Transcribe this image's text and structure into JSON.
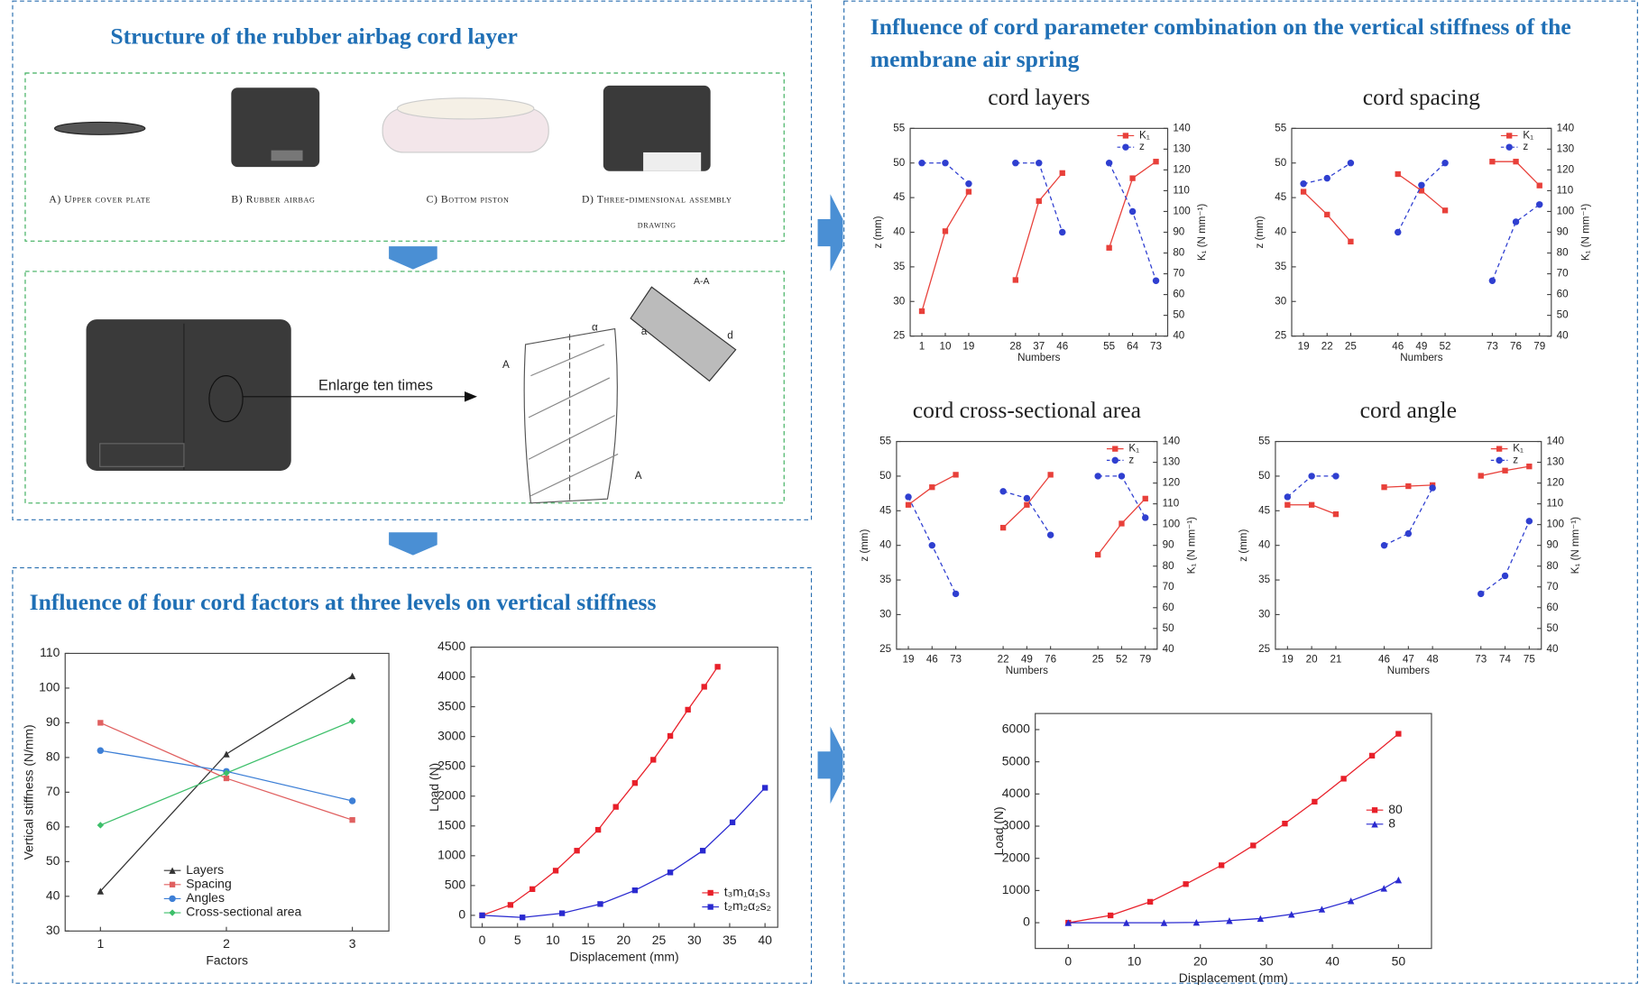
{
  "panels": {
    "structure": {
      "title": "Structure of the rubber airbag cord layer",
      "captions": [
        "A) Upper cover plate",
        "B) Rubber airbag",
        "C) Bottom piston",
        "D) Three-dimensional assembly drawing"
      ],
      "enlarge": "Enlarge ten times",
      "section": "A-A",
      "marks": [
        "A",
        "A",
        "α",
        "a",
        "d"
      ]
    },
    "factors": {
      "title": "Influence of four cord factors at three levels on vertical stiffness"
    },
    "combination": {
      "title": "Influence of cord parameter combination on the vertical stiffness of the membrane air spring"
    }
  },
  "chart_data": [
    {
      "type": "line",
      "x": [
        1,
        2,
        3
      ],
      "xlim": [
        0.72,
        3.29
      ],
      "xticks": [
        1,
        2,
        3
      ],
      "ylim": [
        30,
        110
      ],
      "yticks": [
        30,
        40,
        50,
        60,
        70,
        80,
        90,
        100,
        110
      ],
      "xlabel": "Factors",
      "ylabel": "Vertical stiffness (N/mm)",
      "legend": "lower center",
      "series": [
        {
          "name": "Layers",
          "color": "#333333",
          "marker": "triangle",
          "values": [
            41.5,
            81,
            103.5
          ]
        },
        {
          "name": "Spacing",
          "color": "#e06060",
          "marker": "square",
          "values": [
            90,
            74,
            62
          ]
        },
        {
          "name": "Angles",
          "color": "#3d7fd6",
          "marker": "circle",
          "values": [
            82,
            76,
            67.5
          ]
        },
        {
          "name": "Cross-sectional area",
          "color": "#3dbf6a",
          "marker": "diamond",
          "values": [
            60.5,
            75.5,
            90.5
          ]
        }
      ]
    },
    {
      "type": "line",
      "xlim": [
        -1.6,
        41.8
      ],
      "xticks": [
        0,
        5,
        10,
        15,
        20,
        25,
        30,
        35,
        40
      ],
      "ylim": [
        -200,
        4500
      ],
      "yticks": [
        0,
        500,
        1000,
        1500,
        2000,
        2500,
        3000,
        3500,
        4000,
        4500
      ],
      "xlabel": "Displacement (mm)",
      "ylabel": "Load (N)",
      "legend": "lower right",
      "series": [
        {
          "name": "t₃m₁α₁s₃",
          "color": "#e8202a",
          "marker": "square",
          "x": [
            0,
            4,
            7.1,
            10.4,
            13.4,
            16.4,
            18.9,
            21.6,
            24.2,
            26.6,
            29.1,
            31.4,
            33.3
          ],
          "values": [
            0,
            175,
            440,
            750,
            1085,
            1435,
            1820,
            2220,
            2610,
            3010,
            3450,
            3835,
            4170
          ]
        },
        {
          "name": "t₂m₂α₂s₂",
          "color": "#2a2ad0",
          "marker": "square",
          "x": [
            0,
            5.7,
            11.3,
            16.7,
            21.6,
            26.6,
            31.2,
            35.4,
            40
          ],
          "values": [
            0,
            -35,
            35,
            190,
            420,
            720,
            1085,
            1560,
            2140
          ]
        }
      ]
    },
    {
      "type": "line",
      "xlim": [
        -5,
        55
      ],
      "xticks": [
        0,
        10,
        20,
        30,
        40,
        50
      ],
      "ylim": [
        -800,
        6500
      ],
      "yticks": [
        0,
        1000,
        2000,
        3000,
        4000,
        5000,
        6000
      ],
      "xlabel": "Displacement (mm)",
      "ylabel": "Load (N)",
      "legend": "center right",
      "series": [
        {
          "name": "80",
          "color": "#e8202a",
          "marker": "square",
          "x": [
            0,
            6.4,
            12.4,
            17.8,
            23.2,
            28,
            32.8,
            37.3,
            41.7,
            46,
            50
          ],
          "values": [
            0,
            227,
            650,
            1200,
            1785,
            2400,
            3080,
            3760,
            4475,
            5190,
            5870
          ]
        },
        {
          "name": "8",
          "color": "#2a2ad0",
          "marker": "triangle",
          "x": [
            0,
            8.8,
            14.5,
            19.4,
            24.4,
            29.1,
            33.8,
            38.4,
            42.8,
            47.8,
            50
          ],
          "values": [
            0,
            0,
            0,
            10,
            65,
            130,
            260,
            420,
            680,
            1070,
            1330
          ]
        }
      ]
    },
    {
      "type": "line",
      "title": "cord layers",
      "categories": [
        "1",
        "10",
        "19",
        null,
        "28",
        "37",
        "46",
        null,
        "55",
        "64",
        "73"
      ],
      "xlabel": "Numbers",
      "ylabel": "z (mm)",
      "y2label": "K₁ (N mm⁻¹)",
      "ylim": [
        25,
        55
      ],
      "yticks": [
        25,
        30,
        35,
        40,
        45,
        50,
        55
      ],
      "y2lim": [
        40,
        140
      ],
      "y2ticks": [
        40,
        50,
        60,
        70,
        80,
        90,
        100,
        110,
        120,
        130,
        140
      ],
      "legend": "upper right",
      "series": [
        {
          "name": "K₁",
          "color": "#e8403a",
          "axis": "y2",
          "marker": "square",
          "linestyle": "solid",
          "values": [
            52,
            90.5,
            109.5,
            null,
            67,
            105,
            118.5,
            null,
            82.5,
            116,
            124
          ]
        },
        {
          "name": "z",
          "color": "#2f3fd0",
          "marker": "circle",
          "linestyle": "dashed",
          "values": [
            50,
            50,
            47,
            null,
            50,
            50,
            40,
            null,
            50,
            43,
            33
          ]
        }
      ]
    },
    {
      "type": "line",
      "title": "cord spacing",
      "categories": [
        "19",
        "22",
        "25",
        null,
        "46",
        "49",
        "52",
        null,
        "73",
        "76",
        "79"
      ],
      "xlabel": "Numbers",
      "ylabel": "z (mm)",
      "y2label": "K₁ (N mm⁻¹)",
      "ylim": [
        25,
        55
      ],
      "yticks": [
        25,
        30,
        35,
        40,
        45,
        50,
        55
      ],
      "y2lim": [
        40,
        140
      ],
      "y2ticks": [
        40,
        50,
        60,
        70,
        80,
        90,
        100,
        110,
        120,
        130,
        140
      ],
      "legend": "upper right",
      "series": [
        {
          "name": "K₁",
          "color": "#e8403a",
          "axis": "y2",
          "marker": "square",
          "linestyle": "solid",
          "values": [
            109.5,
            98.5,
            85.5,
            null,
            118,
            110,
            100.5,
            null,
            124,
            124,
            112.5
          ]
        },
        {
          "name": "z",
          "color": "#2f3fd0",
          "marker": "circle",
          "linestyle": "dashed",
          "values": [
            47,
            47.8,
            50,
            null,
            40,
            46.8,
            50,
            null,
            33,
            41.5,
            44
          ]
        }
      ]
    },
    {
      "type": "line",
      "title": "cord cross-sectional area",
      "categories": [
        "19",
        "46",
        "73",
        null,
        "22",
        "49",
        "76",
        null,
        "25",
        "52",
        "79"
      ],
      "xlabel": "Numbers",
      "ylabel": "z (mm)",
      "y2label": "K₁ (N mm⁻¹)",
      "ylim": [
        25,
        55
      ],
      "yticks": [
        25,
        30,
        35,
        40,
        45,
        50,
        55
      ],
      "y2lim": [
        40,
        140
      ],
      "y2ticks": [
        40,
        50,
        60,
        70,
        80,
        90,
        100,
        110,
        120,
        130,
        140
      ],
      "legend": "upper right",
      "series": [
        {
          "name": "K₁",
          "color": "#e8403a",
          "axis": "y2",
          "marker": "square",
          "linestyle": "solid",
          "values": [
            109.5,
            118,
            124,
            null,
            98.5,
            109.5,
            124,
            null,
            85.5,
            100.5,
            112.5
          ]
        },
        {
          "name": "z",
          "color": "#2f3fd0",
          "marker": "circle",
          "linestyle": "dashed",
          "values": [
            47,
            40,
            33,
            null,
            47.8,
            46.8,
            41.5,
            null,
            50,
            50,
            44
          ]
        }
      ]
    },
    {
      "type": "line",
      "title": "cord angle",
      "categories": [
        "19",
        "20",
        "21",
        null,
        "46",
        "47",
        "48",
        null,
        "73",
        "74",
        "75"
      ],
      "xlabel": "Numbers",
      "ylabel": "z (mm)",
      "y2label": "K₁ (N mm⁻¹)",
      "ylim": [
        25,
        55
      ],
      "yticks": [
        25,
        30,
        35,
        40,
        45,
        50,
        55
      ],
      "y2lim": [
        40,
        140
      ],
      "y2ticks": [
        40,
        50,
        60,
        70,
        80,
        90,
        100,
        110,
        120,
        130,
        140
      ],
      "legend": "upper right",
      "series": [
        {
          "name": "K₁",
          "color": "#e8403a",
          "axis": "y2",
          "marker": "square",
          "linestyle": "solid",
          "values": [
            109.5,
            109.5,
            105,
            null,
            118,
            118.5,
            119,
            null,
            123.5,
            126,
            128
          ]
        },
        {
          "name": "z",
          "color": "#2f3fd0",
          "marker": "circle",
          "linestyle": "dashed",
          "values": [
            47,
            50,
            50,
            null,
            40,
            41.7,
            48.3,
            null,
            33,
            35.6,
            43.5
          ]
        }
      ]
    }
  ]
}
